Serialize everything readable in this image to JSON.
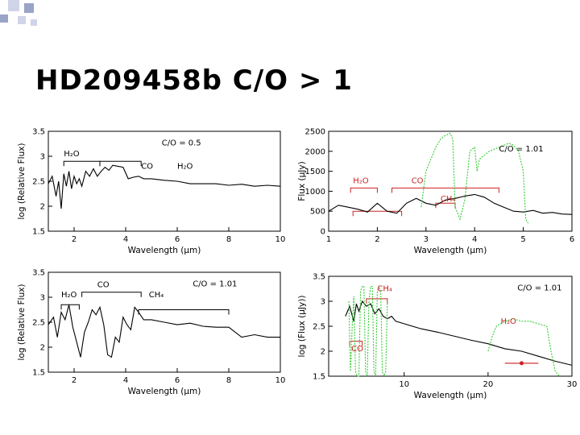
{
  "slide": {
    "title": "HD209458b C/O > 1",
    "colors": {
      "square_dark": "#9aa3c8",
      "square_light": "#cfd4e8",
      "model": "#000000",
      "data": "#33cc33",
      "annot": "#cc2222"
    },
    "decoration_icon": "square-pattern-icon"
  },
  "chart_data": [
    {
      "type": "line",
      "xlabel": "Wavelength (μm)",
      "ylabel": "log (Relative Flux)",
      "xlim": [
        1,
        10
      ],
      "ylim": [
        1.5,
        3.5
      ],
      "xticks": [
        "2",
        "4",
        "6",
        "8",
        "10"
      ],
      "yticks": [
        "1.5",
        "2",
        "2.5",
        "3",
        "3.5"
      ],
      "annotations": [
        {
          "text": "C/O = 0.5",
          "x": 5.4,
          "y": 3.22
        },
        {
          "text": "H₂O",
          "x": 1.6,
          "y": 3.0
        },
        {
          "text": "CO",
          "x": 4.6,
          "y": 2.75
        },
        {
          "text": "H₂O",
          "x": 6.0,
          "y": 2.75
        }
      ],
      "brackets": [
        {
          "x0": 1.6,
          "x1": 3.0,
          "y": 2.9
        },
        {
          "x0": 3.0,
          "x1": 4.6,
          "y": 2.9
        }
      ],
      "series": [
        {
          "color": "#000000",
          "x": [
            1.0,
            1.15,
            1.3,
            1.4,
            1.5,
            1.6,
            1.7,
            1.8,
            1.9,
            2.0,
            2.1,
            2.2,
            2.3,
            2.45,
            2.6,
            2.75,
            2.9,
            3.05,
            3.2,
            3.35,
            3.5,
            3.7,
            3.9,
            4.1,
            4.3,
            4.5,
            4.7,
            5.0,
            5.5,
            6.0,
            6.5,
            7.0,
            7.5,
            8.0,
            8.5,
            9.0,
            9.5,
            10.0
          ],
          "y": [
            2.45,
            2.6,
            2.2,
            2.5,
            1.95,
            2.65,
            2.4,
            2.7,
            2.35,
            2.6,
            2.45,
            2.55,
            2.4,
            2.7,
            2.6,
            2.75,
            2.6,
            2.7,
            2.78,
            2.72,
            2.82,
            2.8,
            2.78,
            2.55,
            2.58,
            2.6,
            2.55,
            2.55,
            2.52,
            2.5,
            2.45,
            2.45,
            2.45,
            2.42,
            2.44,
            2.4,
            2.42,
            2.4
          ]
        }
      ]
    },
    {
      "type": "line",
      "xlabel": "Wavelength (μm)",
      "ylabel": "Flux (μJy)",
      "xlim": [
        1,
        6
      ],
      "ylim": [
        0,
        2500
      ],
      "xticks": [
        "1",
        "2",
        "3",
        "4",
        "5",
        "6"
      ],
      "yticks": [
        "0",
        "500",
        "1000",
        "1500",
        "2000",
        "2500"
      ],
      "annotations": [
        {
          "text": "C/O = 1.01",
          "x": 4.5,
          "y": 2000
        },
        {
          "text": "H₂O",
          "x": 1.5,
          "y": 1200,
          "color": "#cc2222"
        },
        {
          "text": "CO",
          "x": 2.7,
          "y": 1200,
          "color": "#cc2222"
        },
        {
          "text": "CH₄",
          "x": 3.3,
          "y": 750,
          "color": "#cc2222"
        }
      ],
      "brackets": [
        {
          "x0": 1.45,
          "x1": 2.0,
          "y": 1080,
          "color": "#cc2222"
        },
        {
          "x0": 2.3,
          "x1": 4.5,
          "y": 1080,
          "color": "#cc2222"
        },
        {
          "x0": 3.2,
          "x1": 3.6,
          "y": 700,
          "color": "#cc2222"
        },
        {
          "x0": 1.5,
          "x1": 2.5,
          "y": 500,
          "color": "#cc2222"
        }
      ],
      "series": [
        {
          "color": "#000000",
          "x": [
            1.0,
            1.2,
            1.4,
            1.6,
            1.8,
            2.0,
            2.2,
            2.4,
            2.6,
            2.8,
            3.0,
            3.2,
            3.4,
            3.6,
            3.8,
            4.0,
            4.2,
            4.4,
            4.6,
            4.8,
            5.0,
            5.2,
            5.4,
            5.6,
            5.8,
            6.0
          ],
          "y": [
            500,
            650,
            600,
            550,
            480,
            700,
            500,
            450,
            700,
            820,
            700,
            650,
            780,
            820,
            880,
            920,
            850,
            700,
            600,
            500,
            480,
            520,
            450,
            470,
            430,
            420
          ]
        },
        {
          "color": "#33cc33",
          "x": [
            2.9,
            3.0,
            3.1,
            3.2,
            3.3,
            3.4,
            3.5,
            3.55,
            3.6,
            3.7,
            3.8,
            3.9,
            4.0,
            4.05,
            4.1,
            4.3,
            4.5,
            4.7,
            4.8,
            4.9,
            5.0,
            5.05,
            5.1
          ],
          "y": [
            600,
            1500,
            1800,
            2100,
            2300,
            2400,
            2450,
            2300,
            600,
            300,
            800,
            2000,
            2100,
            1500,
            1800,
            2000,
            2100,
            2200,
            2150,
            2000,
            1500,
            300,
            200
          ]
        }
      ]
    },
    {
      "type": "line",
      "xlabel": "Wavelength (μm)",
      "ylabel": "log (Relative Flux)",
      "xlim": [
        1,
        10
      ],
      "ylim": [
        1.5,
        3.5
      ],
      "xticks": [
        "2",
        "4",
        "6",
        "8",
        "10"
      ],
      "yticks": [
        "1.5",
        "2",
        "2.5",
        "3",
        "3.5"
      ],
      "annotations": [
        {
          "text": "C/O = 1.01",
          "x": 6.6,
          "y": 3.22
        },
        {
          "text": "H₂O",
          "x": 1.5,
          "y": 3.0
        },
        {
          "text": "CO",
          "x": 2.9,
          "y": 3.2
        },
        {
          "text": "CH₄",
          "x": 4.9,
          "y": 3.0
        }
      ],
      "brackets": [
        {
          "x0": 1.5,
          "x1": 2.2,
          "y": 2.85
        },
        {
          "x0": 2.3,
          "x1": 4.6,
          "y": 3.1
        },
        {
          "x0": 4.5,
          "x1": 8.0,
          "y": 2.75
        }
      ],
      "series": [
        {
          "color": "#000000",
          "x": [
            1.0,
            1.2,
            1.35,
            1.5,
            1.65,
            1.8,
            1.95,
            2.1,
            2.25,
            2.4,
            2.55,
            2.7,
            2.85,
            3.0,
            3.15,
            3.3,
            3.45,
            3.6,
            3.75,
            3.9,
            4.05,
            4.2,
            4.35,
            4.5,
            4.7,
            5.0,
            5.5,
            6.0,
            6.5,
            7.0,
            7.5,
            8.0,
            8.5,
            9.0,
            9.5,
            10.0
          ],
          "y": [
            2.45,
            2.6,
            2.2,
            2.7,
            2.55,
            2.85,
            2.4,
            2.1,
            1.8,
            2.3,
            2.5,
            2.75,
            2.65,
            2.8,
            2.45,
            1.85,
            1.8,
            2.2,
            2.1,
            2.6,
            2.45,
            2.35,
            2.8,
            2.7,
            2.55,
            2.55,
            2.5,
            2.45,
            2.48,
            2.42,
            2.4,
            2.4,
            2.2,
            2.25,
            2.2,
            2.2
          ]
        }
      ]
    },
    {
      "type": "line",
      "xlabel": "Wavelength (μm)",
      "ylabel": "log (Flux (μJy))",
      "xlim": [
        1,
        30
      ],
      "ylim": [
        1.5,
        3.5
      ],
      "xticks": [
        "10",
        "20",
        "30"
      ],
      "yticks": [
        "1.5",
        "2",
        "2.5",
        "3",
        "3.5"
      ],
      "annotations": [
        {
          "text": "C/O = 1.01",
          "x": 23.5,
          "y": 3.22
        },
        {
          "text": "CH₄",
          "x": 6.8,
          "y": 3.2,
          "color": "#cc2222"
        },
        {
          "text": "H₂O",
          "x": 21.5,
          "y": 2.55,
          "color": "#cc2222"
        },
        {
          "text": "CO",
          "x": 3.7,
          "y": 2.0,
          "color": "#cc2222"
        }
      ],
      "brackets": [
        {
          "x0": 5.5,
          "x1": 8.0,
          "y": 3.05,
          "color": "#cc2222"
        },
        {
          "x0": 3.5,
          "x1": 5.0,
          "y": 2.2,
          "color": "#cc2222"
        }
      ],
      "series": [
        {
          "color": "#000000",
          "x": [
            3.0,
            3.5,
            4.0,
            4.3,
            4.6,
            5.0,
            5.5,
            6.0,
            6.5,
            7.0,
            7.5,
            8.0,
            8.5,
            9.0,
            10,
            12,
            14,
            16,
            18,
            20,
            22,
            24,
            26,
            28,
            30
          ],
          "y": [
            2.7,
            2.9,
            2.6,
            2.95,
            2.8,
            3.0,
            2.9,
            2.95,
            2.75,
            2.85,
            2.7,
            2.65,
            2.7,
            2.6,
            2.55,
            2.45,
            2.38,
            2.3,
            2.22,
            2.15,
            2.05,
            2.0,
            1.9,
            1.8,
            1.72
          ]
        },
        {
          "color": "#33cc33",
          "x": [
            3.4,
            3.6,
            3.8,
            4.0,
            4.2,
            4.4,
            4.6,
            4.8,
            5.0,
            5.2,
            5.4,
            5.6,
            5.8,
            6.0,
            6.2,
            6.4,
            6.6,
            6.8,
            7.0,
            7.2,
            7.4,
            7.6,
            7.8,
            8.0
          ],
          "y": [
            3.0,
            1.6,
            2.5,
            3.1,
            1.6,
            1.5,
            1.5,
            3.2,
            3.3,
            3.3,
            1.6,
            1.5,
            3.0,
            3.3,
            3.3,
            1.6,
            1.5,
            3.2,
            3.3,
            3.2,
            1.6,
            1.5,
            1.6,
            3.0
          ]
        },
        {
          "color": "#33cc33",
          "x": [
            20,
            20.5,
            21,
            22,
            23,
            24,
            25,
            26,
            27,
            27.5,
            28,
            28.5
          ],
          "y": [
            2.0,
            2.3,
            2.5,
            2.6,
            2.65,
            2.6,
            2.6,
            2.55,
            2.5,
            2.0,
            1.6,
            1.5
          ]
        },
        {
          "color": "#cc2222",
          "x": [
            22,
            26
          ],
          "y": [
            1.76,
            1.76
          ]
        },
        {
          "color": "#cc2222",
          "x": [
            24
          ],
          "y": [
            1.76
          ],
          "marker": true
        }
      ]
    }
  ]
}
